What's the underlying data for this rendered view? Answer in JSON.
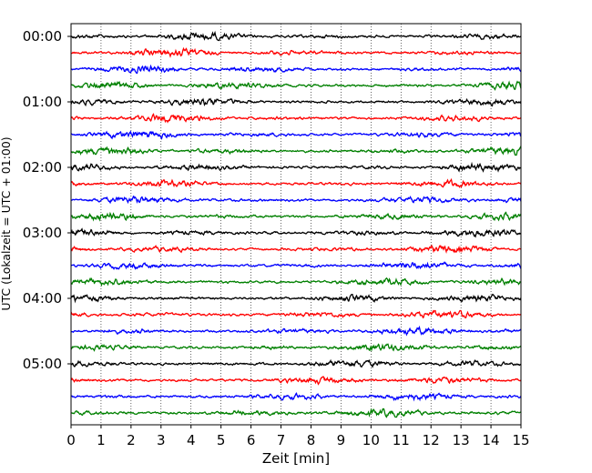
{
  "chart_data": {
    "type": "line",
    "title": "",
    "xlabel": "Zeit  [min]",
    "ylabel": "UTC (Lokalzeit = UTC + 01:00)",
    "xlim": [
      0,
      15
    ],
    "ylim_hours": [
      0,
      6
    ],
    "x_ticks": [
      "0",
      "1",
      "2",
      "3",
      "4",
      "5",
      "6",
      "7",
      "8",
      "9",
      "10",
      "11",
      "12",
      "13",
      "14",
      "15"
    ],
    "y_ticks": [
      "00:00",
      "01:00",
      "02:00",
      "03:00",
      "04:00",
      "05:00"
    ],
    "grid": "vertical dotted lines at each minute",
    "trace_interval_min": 15,
    "trace_colors": [
      "#000000",
      "#ff0000",
      "#0000ff",
      "#008000"
    ],
    "traces": [
      {
        "start": "00:00",
        "color": "#000000"
      },
      {
        "start": "00:15",
        "color": "#ff0000"
      },
      {
        "start": "00:30",
        "color": "#0000ff"
      },
      {
        "start": "00:45",
        "color": "#008000"
      },
      {
        "start": "01:00",
        "color": "#000000"
      },
      {
        "start": "01:15",
        "color": "#ff0000"
      },
      {
        "start": "01:30",
        "color": "#0000ff"
      },
      {
        "start": "01:45",
        "color": "#008000"
      },
      {
        "start": "02:00",
        "color": "#000000"
      },
      {
        "start": "02:15",
        "color": "#ff0000"
      },
      {
        "start": "02:30",
        "color": "#0000ff"
      },
      {
        "start": "02:45",
        "color": "#008000"
      },
      {
        "start": "03:00",
        "color": "#000000"
      },
      {
        "start": "03:15",
        "color": "#ff0000"
      },
      {
        "start": "03:30",
        "color": "#0000ff"
      },
      {
        "start": "03:45",
        "color": "#008000"
      },
      {
        "start": "04:00",
        "color": "#000000"
      },
      {
        "start": "04:15",
        "color": "#ff0000"
      },
      {
        "start": "04:30",
        "color": "#0000ff"
      },
      {
        "start": "04:45",
        "color": "#008000"
      },
      {
        "start": "05:00",
        "color": "#000000"
      },
      {
        "start": "05:15",
        "color": "#ff0000"
      },
      {
        "start": "05:30",
        "color": "#0000ff"
      },
      {
        "start": "05:45",
        "color": "#008000"
      }
    ]
  }
}
